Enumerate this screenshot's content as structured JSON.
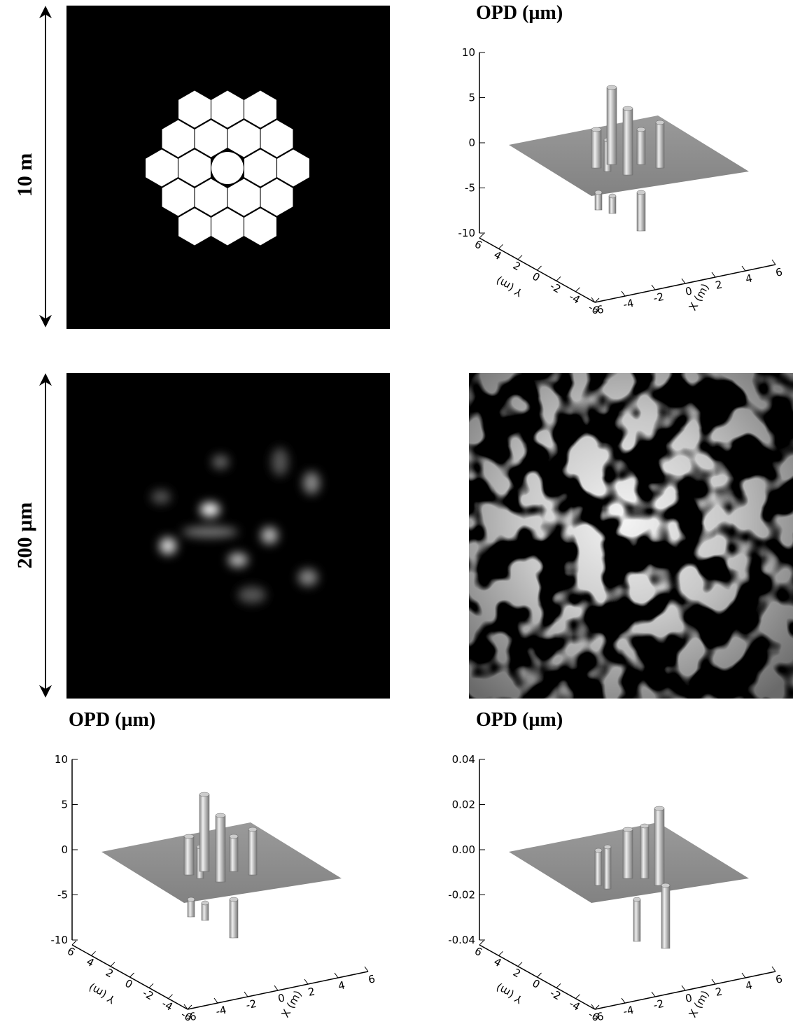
{
  "pupil": {
    "scale_label": "10 m"
  },
  "psf": {
    "scale_label": "200 µm"
  },
  "opd_plots": [
    {
      "title": "OPD (µm)",
      "z_ticks": [
        "10",
        "5",
        "0",
        "-5",
        "-10"
      ],
      "y_label": "Y (m)",
      "y_ticks": [
        "6",
        "4",
        "2",
        "0",
        "-2",
        "-4",
        "-6"
      ],
      "x_label": "X (m)",
      "x_ticks": [
        "-6",
        "-4",
        "-2",
        "0",
        "2",
        "4",
        "6"
      ]
    },
    {
      "title": "OPD (µm)",
      "z_ticks": [
        "10",
        "5",
        "0",
        "-5",
        "-10"
      ],
      "y_label": "Y (m)",
      "y_ticks": [
        "6",
        "4",
        "2",
        "0",
        "-2",
        "-4",
        "-6"
      ],
      "x_label": "X (m)",
      "x_ticks": [
        "-6",
        "-4",
        "-2",
        "0",
        "2",
        "4",
        "6"
      ]
    },
    {
      "title": "OPD (µm)",
      "z_ticks": [
        "0.04",
        "0.02",
        "0.00",
        "-0.02",
        "-0.04"
      ],
      "y_label": "Y (m)",
      "y_ticks": [
        "6",
        "4",
        "2",
        "0",
        "-2",
        "-4",
        "-6"
      ],
      "x_label": "X (m)",
      "x_ticks": [
        "-6",
        "-4",
        "-2",
        "0",
        "2",
        "4",
        "6"
      ]
    }
  ]
}
